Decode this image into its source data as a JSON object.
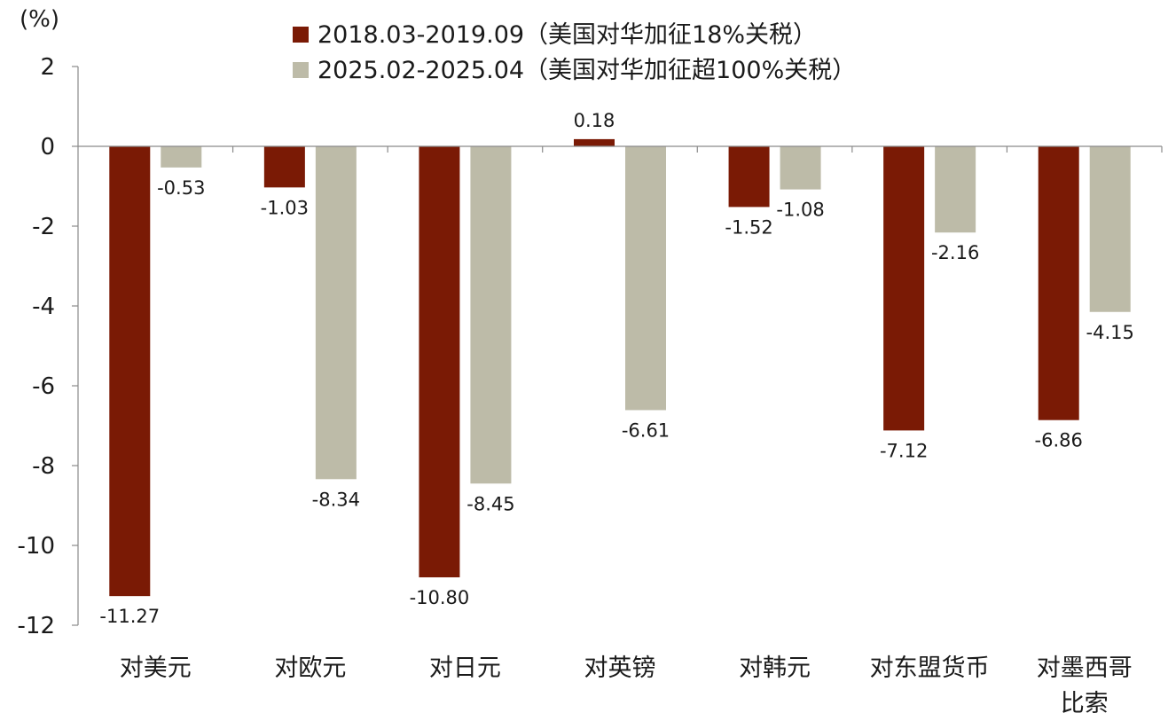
{
  "chart_data": {
    "type": "bar",
    "unit_label": "(%)",
    "categories": [
      "对美元",
      "对欧元",
      "对日元",
      "对英镑",
      "对韩元",
      "对东盟货币",
      "对墨西哥比索"
    ],
    "category_lines": [
      [
        "对美元"
      ],
      [
        "对欧元"
      ],
      [
        "对日元"
      ],
      [
        "对英镑"
      ],
      [
        "对韩元"
      ],
      [
        "对东盟货币"
      ],
      [
        "对墨西哥",
        "比索"
      ]
    ],
    "series": [
      {
        "name": "2018.03-2019.09（美国对华加征18%关税）",
        "color": "#7a1a05",
        "values": [
          -11.27,
          -1.03,
          -10.8,
          0.18,
          -1.52,
          -7.12,
          -6.86
        ],
        "labels": [
          "-11.27",
          "-1.03",
          "-10.80",
          "0.18",
          "-1.52",
          "-7.12",
          "-6.86"
        ]
      },
      {
        "name": "2025.02-2025.04（美国对华加征超100%关税）",
        "color": "#bdbba8",
        "values": [
          -0.53,
          -8.34,
          -8.45,
          -6.61,
          -1.08,
          -2.16,
          -4.15
        ],
        "labels": [
          "-0.53",
          "-8.34",
          "-8.45",
          "-6.61",
          "-1.08",
          "-2.16",
          "-4.15"
        ]
      }
    ],
    "ylim": [
      -12,
      2
    ],
    "yticks": [
      2,
      0,
      -2,
      -4,
      -6,
      -8,
      -10,
      -12
    ],
    "ytick_labels": [
      "2",
      "0",
      "-2",
      "-4",
      "-6",
      "-8",
      "-10",
      "-12"
    ],
    "legend_position": "top-center",
    "grid": false
  }
}
